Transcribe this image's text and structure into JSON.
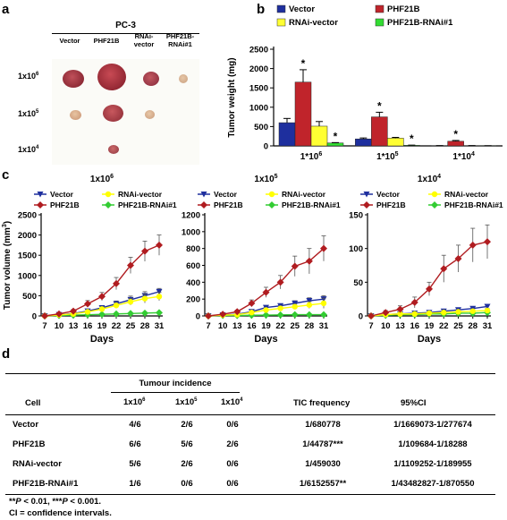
{
  "panels": {
    "a": "a",
    "b": "b",
    "c": "c",
    "d": "d"
  },
  "panel_a": {
    "title": "PC-3",
    "columns": [
      "Vector",
      "PHF21B",
      "RNAi-\nvector",
      "PHF21B-\nRNAi#1"
    ],
    "rows": [
      {
        "base": "1x10",
        "exp": "6"
      },
      {
        "base": "1x10",
        "exp": "5"
      },
      {
        "base": "1x10",
        "exp": "4"
      }
    ]
  },
  "panel_b": {
    "legend": [
      "Vector",
      "PHF21B",
      "RNAi-vector",
      "PHF21B-RNAi#1"
    ],
    "colors": [
      "#1e2f9e",
      "#c0242b",
      "#ffff33",
      "#33dd33"
    ],
    "asterisk": "*"
  },
  "panel_c": {
    "legend": [
      "Vector",
      "RNAi-vector",
      "PHF21B",
      "PHF21B-RNAi#1"
    ],
    "colors": {
      "Vector": "#1e2f9e",
      "RNAi-vector": "#ffff00",
      "PHF21B": "#b01c20",
      "PHF21B-RNAi#1": "#33cc33"
    },
    "ylabel_base": "Tumor volume (mm",
    "ylabel_exp": "3",
    "ylabel_end": ")"
  },
  "chart_data": [
    {
      "type": "bar",
      "categories": [
        "1*10^6",
        "1*10^5",
        "1*10^4"
      ],
      "tick_labels": [
        "1*10",
        "1*10",
        "1*10"
      ],
      "tick_exps": [
        "6",
        "5",
        "4"
      ],
      "ylabel": "Tumor weight (mg)",
      "ylim": [
        0,
        2500
      ],
      "yticks": [
        0,
        500,
        1000,
        1500,
        2000,
        2500
      ],
      "series": [
        {
          "name": "Vector",
          "values": [
            600,
            180,
            5
          ],
          "errors": [
            110,
            25,
            3
          ]
        },
        {
          "name": "PHF21B",
          "values": [
            1650,
            750,
            120
          ],
          "errors": [
            320,
            120,
            20
          ]
        },
        {
          "name": "RNAi-vector",
          "values": [
            510,
            200,
            5
          ],
          "errors": [
            120,
            20,
            3
          ]
        },
        {
          "name": "PHF21B-RNAi#1",
          "values": [
            75,
            15,
            3
          ],
          "errors": [
            10,
            5,
            2
          ]
        }
      ],
      "significance": [
        [
          false,
          true,
          false,
          true
        ],
        [
          false,
          true,
          false,
          true
        ],
        [
          false,
          true,
          false,
          false
        ]
      ]
    },
    {
      "type": "line",
      "title": "1x10",
      "title_exp": "6",
      "xlabel": "Days",
      "x": [
        7,
        10,
        13,
        16,
        19,
        22,
        25,
        28,
        31
      ],
      "ylim": [
        0,
        2500
      ],
      "yticks": [
        0,
        500,
        1000,
        1500,
        2000,
        2500
      ],
      "series": [
        {
          "name": "Vector",
          "marker": "triangle",
          "values": [
            0,
            30,
            60,
            120,
            200,
            300,
            400,
            500,
            600
          ],
          "errors": [
            0,
            10,
            15,
            30,
            50,
            70,
            90,
            100,
            80
          ]
        },
        {
          "name": "RNAi-vector",
          "marker": "circle",
          "values": [
            0,
            25,
            50,
            100,
            170,
            260,
            350,
            430,
            480
          ],
          "errors": [
            0,
            10,
            15,
            25,
            40,
            60,
            80,
            110,
            100
          ]
        },
        {
          "name": "PHF21B",
          "marker": "diamond",
          "values": [
            0,
            50,
            120,
            300,
            480,
            800,
            1250,
            1600,
            1750
          ],
          "errors": [
            0,
            20,
            40,
            80,
            100,
            150,
            200,
            250,
            250
          ]
        },
        {
          "name": "PHF21B-RNAi#1",
          "marker": "diamond",
          "values": [
            0,
            10,
            20,
            30,
            40,
            50,
            60,
            70,
            80
          ],
          "errors": [
            0,
            5,
            5,
            8,
            10,
            10,
            12,
            12,
            15
          ]
        }
      ]
    },
    {
      "type": "line",
      "title": "1x10",
      "title_exp": "5",
      "xlabel": "Days",
      "x": [
        7,
        10,
        13,
        16,
        19,
        22,
        25,
        28,
        31
      ],
      "ylim": [
        0,
        1200
      ],
      "yticks": [
        0,
        200,
        400,
        600,
        800,
        1000,
        1200
      ],
      "series": [
        {
          "name": "Vector",
          "marker": "triangle",
          "values": [
            0,
            10,
            20,
            50,
            100,
            120,
            150,
            180,
            200
          ],
          "errors": [
            0,
            5,
            8,
            15,
            20,
            25,
            30,
            35,
            40
          ]
        },
        {
          "name": "RNAi-vector",
          "marker": "circle",
          "values": [
            0,
            10,
            15,
            40,
            70,
            90,
            110,
            130,
            150
          ],
          "errors": [
            0,
            5,
            8,
            12,
            20,
            25,
            30,
            40,
            60
          ]
        },
        {
          "name": "PHF21B",
          "marker": "diamond",
          "values": [
            0,
            20,
            50,
            150,
            280,
            400,
            590,
            650,
            800
          ],
          "errors": [
            0,
            10,
            20,
            40,
            60,
            80,
            120,
            150,
            150
          ]
        },
        {
          "name": "PHF21B-RNAi#1",
          "marker": "diamond",
          "values": [
            0,
            5,
            5,
            8,
            10,
            12,
            15,
            15,
            15
          ],
          "errors": [
            0,
            2,
            2,
            3,
            3,
            4,
            5,
            5,
            5
          ]
        }
      ]
    },
    {
      "type": "line",
      "title": "1x10",
      "title_exp": "4",
      "xlabel": "Days",
      "x": [
        7,
        10,
        13,
        16,
        19,
        22,
        25,
        28,
        31
      ],
      "ylim": [
        0,
        150
      ],
      "yticks": [
        0,
        50,
        100,
        150
      ],
      "series": [
        {
          "name": "Vector",
          "marker": "triangle",
          "values": [
            0,
            2,
            3,
            4,
            5,
            7,
            9,
            11,
            14
          ],
          "errors": [
            0,
            1,
            1,
            1,
            2,
            2,
            3,
            3,
            3
          ]
        },
        {
          "name": "RNAi-vector",
          "marker": "circle",
          "values": [
            0,
            2,
            3,
            3,
            4,
            5,
            6,
            7,
            8
          ],
          "errors": [
            0,
            1,
            1,
            1,
            1,
            2,
            2,
            3,
            3
          ]
        },
        {
          "name": "PHF21B",
          "marker": "diamond",
          "values": [
            0,
            5,
            10,
            20,
            40,
            70,
            85,
            105,
            110
          ],
          "errors": [
            0,
            3,
            5,
            8,
            10,
            20,
            20,
            25,
            25
          ]
        },
        {
          "name": "PHF21B-RNAi#1",
          "marker": "diamond",
          "values": [
            0,
            1,
            2,
            2,
            3,
            3,
            4,
            4,
            5
          ],
          "errors": [
            0,
            1,
            1,
            1,
            1,
            1,
            1,
            1,
            1
          ]
        }
      ]
    },
    {
      "type": "table",
      "group_header": "Tumour incidence",
      "headers": {
        "cell": "Cell",
        "inc": [
          {
            "base": "1x10",
            "exp": "6"
          },
          {
            "base": "1x10",
            "exp": "5"
          },
          {
            "base": "1x10",
            "exp": "4"
          }
        ],
        "tic": "TIC frequency",
        "ci": "95%CI"
      },
      "rows": [
        {
          "cell": "Vector",
          "i6": "4/6",
          "i5": "2/6",
          "i4": "0/6",
          "tic": "1/680778",
          "ci": "1/1669073-1/277674"
        },
        {
          "cell": "PHF21B",
          "i6": "6/6",
          "i5": "5/6",
          "i4": "2/6",
          "tic": "1/44787***",
          "ci": "1/109684-1/18288"
        },
        {
          "cell": "RNAi-vector",
          "i6": "5/6",
          "i5": "2/6",
          "i4": "0/6",
          "tic": "1/459030",
          "ci": "1/1109252-1/189955"
        },
        {
          "cell": "PHF21B-RNAi#1",
          "i6": "1/6",
          "i5": "0/6",
          "i4": "0/6",
          "tic": "1/6152557**",
          "ci": "1/43482827-1/870550"
        }
      ]
    }
  ],
  "notes": {
    "line1_a": "**",
    "line1_b": "P",
    "line1_c": " < 0.01, ***",
    "line1_d": "P",
    "line1_e": " < 0.001.",
    "line2": "CI = confidence intervals."
  }
}
